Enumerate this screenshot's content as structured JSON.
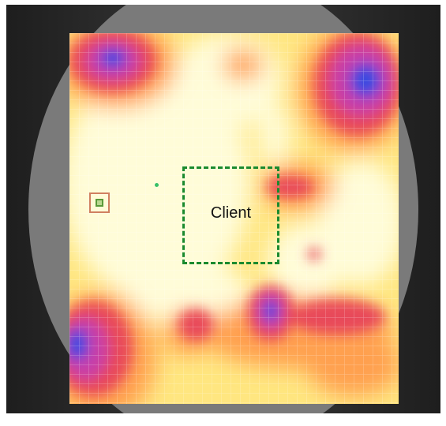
{
  "labels": {
    "client": "Client"
  },
  "colors": {
    "frame_dark": "#2a2a2a",
    "lens_gray": "#7a7a7a",
    "heat_low": "#fffcd8",
    "heat_mid": "#ffe680",
    "heat_high": "#ffa050",
    "heat_red": "#e8485a",
    "heat_magenta": "#c840a8",
    "heat_blue": "#3a48e0",
    "client_box": "#1a8a2e",
    "ap_marker": "#d08060"
  },
  "markers": {
    "client_box": "dashed-rectangle",
    "access_point": "square-target-icon",
    "green_dot": "dot-icon"
  }
}
